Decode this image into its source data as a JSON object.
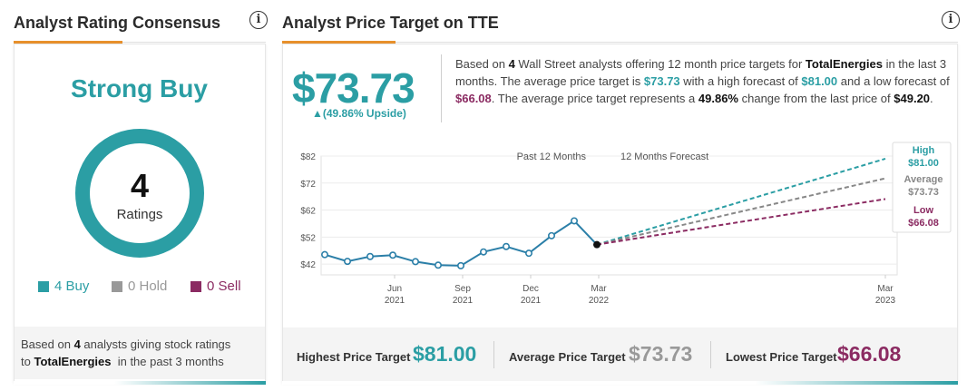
{
  "left_panel": {
    "title": "Analyst Rating Consensus",
    "consensus": "Strong Buy",
    "total_ratings": "4",
    "ratings_label": "Ratings",
    "legend": [
      {
        "label": "4 Buy",
        "color": "#2b9ea4"
      },
      {
        "label": "0 Hold",
        "color": "#999999"
      },
      {
        "label": "0 Sell",
        "color": "#8b2b62"
      }
    ],
    "footer_part1": "Based on",
    "footer_count": "4",
    "footer_part2": "analysts giving stock ratings",
    "footer_part3": "to",
    "footer_company": "TotalEnergies",
    "footer_part4": "in the past 3 months"
  },
  "right_panel": {
    "title": "Analyst Price Target on TTE",
    "avg_price": "$73.73",
    "upside": "▲(49.86% Upside)",
    "description": {
      "t1": "Based on",
      "analyst_count": "4",
      "t2": "Wall Street analysts offering 12 month price targets for",
      "company": "TotalEnergies",
      "t3": "in the last 3 months. The average price target is",
      "avg": "$73.73",
      "t4": "with a high forecast of",
      "high": "$81.00",
      "t5": "and a low forecast of",
      "low": "$66.08",
      "t6": ". The average price target represents a",
      "change": "49.86%",
      "t7": "change from the last price of",
      "last_price": "$49.20",
      "t8": "."
    },
    "stats": {
      "highest_label": "Highest Price Target",
      "highest_value": "$81.00",
      "average_label": "Average Price Target",
      "average_value": "$73.73",
      "lowest_label": "Lowest Price Target",
      "lowest_value": "$66.08"
    }
  },
  "colors": {
    "teal": "#2b9ea4",
    "gray": "#888888",
    "purple": "#8b2b62",
    "orange": "#e8912c",
    "line": "#2b7fa8"
  },
  "chart_data": {
    "type": "line",
    "title": "Analyst Price Target on TTE",
    "section_labels": [
      "Past 12 Months",
      "12 Months Forecast"
    ],
    "y_ticks": [
      "$82",
      "$72",
      "$62",
      "$52",
      "$42"
    ],
    "y_tick_values": [
      82,
      72,
      62,
      52,
      42
    ],
    "ylim": [
      38,
      82
    ],
    "x_tick_labels": [
      {
        "month": "Jun",
        "year": "2021"
      },
      {
        "month": "Sep",
        "year": "2021"
      },
      {
        "month": "Dec",
        "year": "2021"
      },
      {
        "month": "Mar",
        "year": "2022"
      },
      {
        "month": "Mar",
        "year": "2023"
      }
    ],
    "history_series": {
      "name": "Price",
      "values": [
        45.5,
        43.0,
        44.8,
        45.3,
        42.9,
        41.6,
        41.4,
        46.5,
        48.5,
        46.0,
        52.5,
        58.0,
        49.2
      ]
    },
    "forecast": {
      "start": 49.2,
      "high": {
        "label": "High",
        "value": 81.0,
        "value_label": "$81.00"
      },
      "average": {
        "label": "Average",
        "value": 73.73,
        "value_label": "$73.73"
      },
      "low": {
        "label": "Low",
        "value": 66.08,
        "value_label": "$66.08"
      }
    }
  }
}
